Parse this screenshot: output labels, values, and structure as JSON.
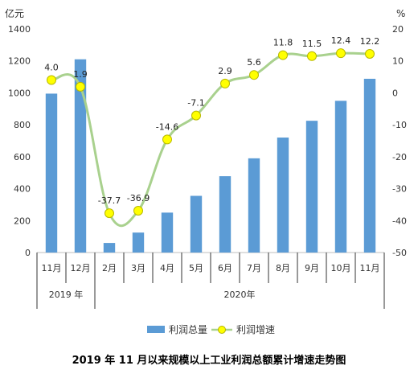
{
  "chart_data": {
    "type": "bar",
    "title": "2019 年 11 月以来规模以上工业利润总额累计增速走势图",
    "y_left_unit": "亿元",
    "y_right_unit": "%",
    "y_left_ticks": [
      "0",
      "200",
      "400",
      "600",
      "800",
      "1000",
      "1200",
      "1400"
    ],
    "y_right_ticks": [
      "-50",
      "-40",
      "-30",
      "-20",
      "-10",
      "0",
      "10",
      "20"
    ],
    "ylim_left": [
      0,
      1400
    ],
    "ylim_right": [
      -50,
      20
    ],
    "categories": [
      "11月",
      "12月",
      "2月",
      "3月",
      "4月",
      "5月",
      "6月",
      "7月",
      "8月",
      "9月",
      "10月",
      "11月"
    ],
    "year_groups": [
      {
        "label": "2019 年",
        "span": 2
      },
      {
        "label": "2020年",
        "span": 10
      }
    ],
    "series": [
      {
        "name": "利润总量",
        "type": "bar",
        "axis": "left",
        "color": "#5b9bd5",
        "values": [
          995,
          1210,
          60,
          125,
          250,
          355,
          478,
          590,
          720,
          825,
          950,
          1088
        ]
      },
      {
        "name": "利润增速",
        "type": "line",
        "axis": "right",
        "color": "#a9d18e",
        "marker_color": "#ffff00",
        "values": [
          4.0,
          1.9,
          -37.7,
          -36.9,
          -14.6,
          -7.1,
          2.9,
          5.6,
          11.8,
          11.5,
          12.4,
          12.2
        ],
        "labels": [
          "4.0",
          "1.9",
          "-37.7",
          "-36.9",
          "-14.6",
          "-7.1",
          "2.9",
          "5.6",
          "11.8",
          "11.5",
          "12.4",
          "12.2"
        ]
      }
    ],
    "grid": false,
    "legend_position": "bottom"
  }
}
